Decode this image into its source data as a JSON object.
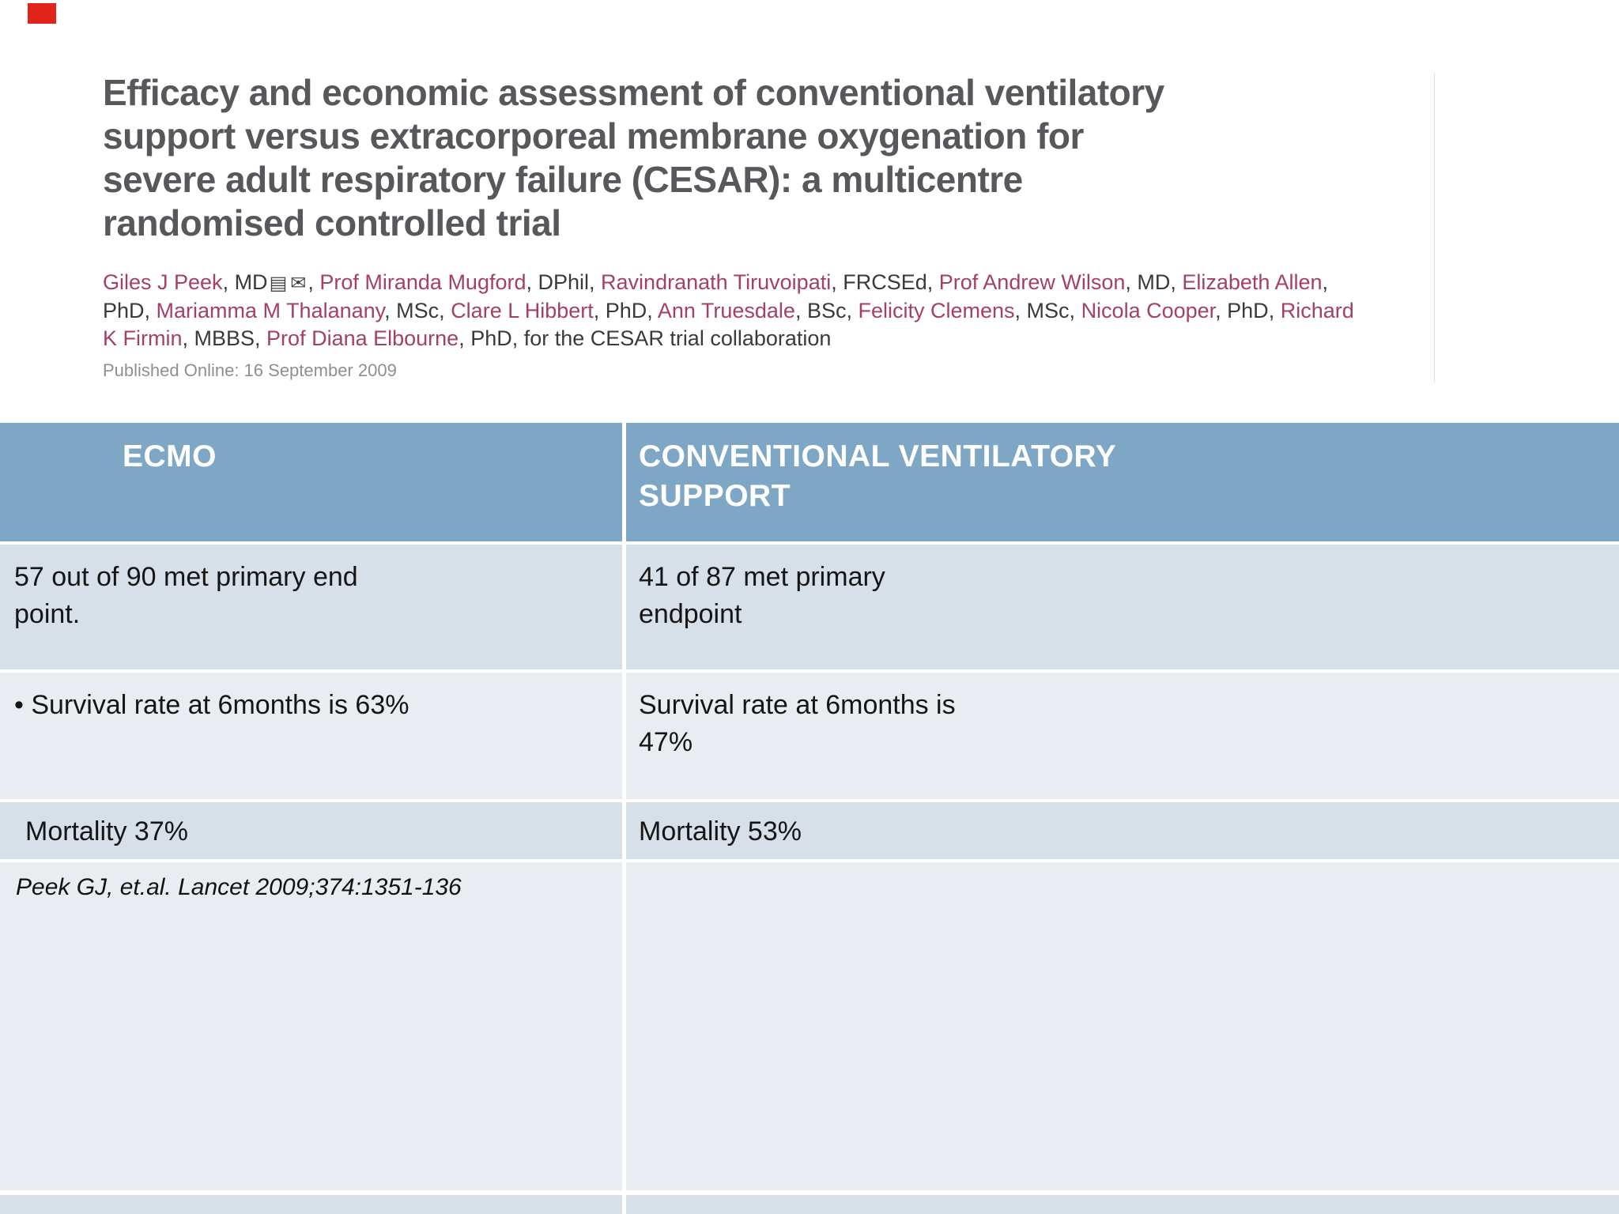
{
  "slide": {
    "marker_color": "#e2231a"
  },
  "paper": {
    "title_lines": [
      "Efficacy and economic assessment of conventional ventilatory",
      "support versus extracorporeal membrane oxygenation for",
      "severe adult respiratory failure (CESAR): a multicentre",
      "randomised controlled trial"
    ],
    "authors": [
      {
        "name": "Giles J Peek",
        "qual": "MD",
        "icons": true
      },
      {
        "name": "Prof Miranda Mugford",
        "qual": "DPhil"
      },
      {
        "name": "Ravindranath Tiruvoipati",
        "qual": "FRCSEd"
      },
      {
        "name": "Prof Andrew Wilson",
        "qual": "MD"
      },
      {
        "name": "Elizabeth Allen",
        "qual": "PhD"
      },
      {
        "name": "Mariamma M Thalanany",
        "qual": "MSc"
      },
      {
        "name": "Clare L Hibbert",
        "qual": "PhD"
      },
      {
        "name": "Ann Truesdale",
        "qual": "BSc"
      },
      {
        "name": "Felicity Clemens",
        "qual": "MSc"
      },
      {
        "name": "Nicola Cooper",
        "qual": "PhD"
      },
      {
        "name": "Richard K Firmin",
        "qual": "MBBS"
      },
      {
        "name": "Prof Diana Elbourne",
        "qual": "PhD"
      }
    ],
    "authors_suffix": "for the CESAR trial collaboration",
    "published": "Published Online: 16 September 2009",
    "icons": {
      "note": "▤",
      "mail": "✉"
    }
  },
  "table": {
    "columns": [
      {
        "header": "ECMO"
      },
      {
        "header": "CONVENTIONAL VENTILATORY SUPPORT"
      }
    ],
    "rows": [
      {
        "left": "57 out of 90 met primary end point.",
        "right": "41 of 87 met primary endpoint"
      },
      {
        "left": "• Survival rate at 6months is 63%",
        "right": "Survival rate at 6months is 47%"
      },
      {
        "left": "Mortality 37%",
        "right": "Mortality 53%"
      },
      {
        "left": "Peek GJ, et.al. Lancet 2009;374:1351-136",
        "right": ""
      }
    ],
    "colors": {
      "header_bg": "#7ea7c6",
      "row_dark": "#d7dfe8",
      "row_light": "#e9edf2",
      "divider": "#ffffff",
      "header_text": "#ffffff"
    }
  }
}
